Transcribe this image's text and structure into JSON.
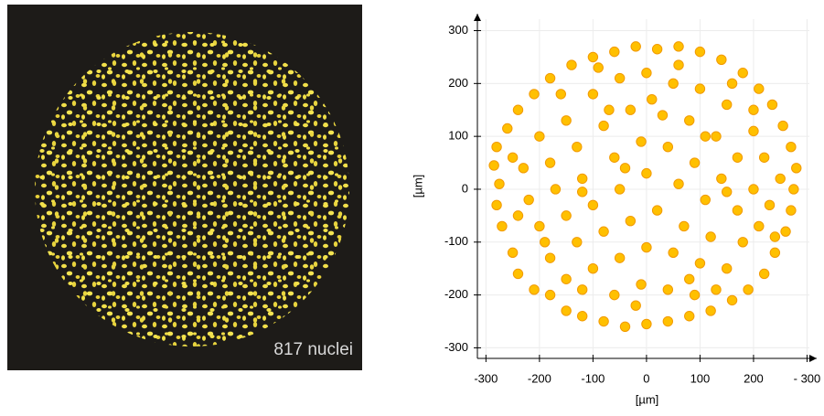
{
  "image": {
    "label": "817 nuclei"
  },
  "chart_data": {
    "type": "scatter",
    "x_label": "[µm]",
    "y_label": "[µm]",
    "xlim": [
      -316,
      318
    ],
    "ylim": [
      -320,
      332
    ],
    "xticks": [
      -300,
      -200,
      -100,
      0,
      100,
      200,
      {
        "value": 300,
        "label": "- 300"
      }
    ],
    "yticks": [
      -300,
      -200,
      -100,
      0,
      100,
      200,
      300
    ],
    "grid": true,
    "series": [
      {
        "color": "#ffc000",
        "x": [
          -280,
          -285,
          -275,
          -280,
          -270,
          -250,
          -240,
          -210,
          -180,
          -150,
          -120,
          -80,
          -40,
          0,
          40,
          80,
          120,
          160,
          190,
          220,
          240,
          260,
          270,
          275,
          280,
          270,
          255,
          235,
          210,
          180,
          140,
          100,
          60,
          20,
          -20,
          -60,
          -100,
          -140,
          -180,
          -210,
          -240,
          -260,
          -200,
          -150,
          -100,
          -50,
          0,
          50,
          100,
          150,
          200,
          220,
          -230,
          -180,
          -130,
          -80,
          -30,
          30,
          80,
          130,
          170,
          -220,
          -170,
          -120,
          -60,
          -10,
          40,
          90,
          140,
          200,
          230,
          -200,
          -150,
          -100,
          -50,
          0,
          60,
          110,
          170,
          -180,
          -130,
          -80,
          -30,
          20,
          70,
          120,
          180,
          210,
          -150,
          -100,
          -50,
          0,
          50,
          100,
          150,
          -60,
          -10,
          40,
          90,
          -120,
          130,
          -250,
          250,
          -90,
          60,
          -160,
          160,
          -240,
          240,
          -20,
          10,
          -70,
          110,
          -120,
          80,
          -40,
          150,
          -190,
          200
        ],
        "values": [
          80,
          45,
          10,
          -30,
          -70,
          -120,
          -160,
          -190,
          -200,
          -230,
          -240,
          -250,
          -260,
          -255,
          -250,
          -240,
          -230,
          -210,
          -190,
          -160,
          -120,
          -80,
          -40,
          0,
          40,
          80,
          120,
          160,
          190,
          220,
          245,
          260,
          270,
          265,
          270,
          260,
          250,
          235,
          210,
          180,
          150,
          115,
          100,
          130,
          180,
          210,
          220,
          200,
          190,
          160,
          110,
          60,
          40,
          50,
          80,
          120,
          150,
          140,
          130,
          100,
          60,
          -20,
          0,
          20,
          60,
          90,
          80,
          50,
          20,
          0,
          -30,
          -70,
          -50,
          -30,
          0,
          30,
          10,
          -20,
          -40,
          -130,
          -100,
          -80,
          -60,
          -40,
          -70,
          -90,
          -100,
          -70,
          -170,
          -150,
          -130,
          -110,
          -120,
          -140,
          -150,
          -200,
          -180,
          -190,
          -200,
          -190,
          -190,
          60,
          20,
          230,
          235,
          180,
          200,
          -50,
          -90,
          -220,
          170,
          150,
          100,
          -5,
          -170,
          40,
          -5,
          -100,
          150
        ]
      }
    ]
  }
}
